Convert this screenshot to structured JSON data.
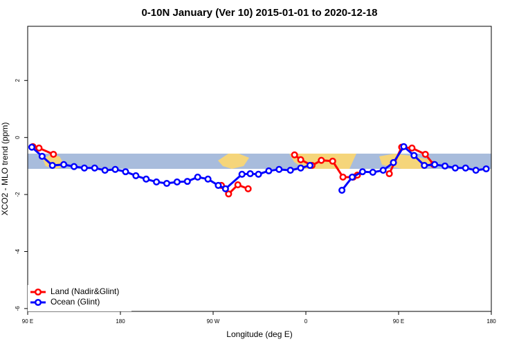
{
  "chart_data": {
    "type": "line",
    "title": "0-10N January (Ver 10)   2015-01-01 to 2020-12-18",
    "x_label": "Longitude (deg E)",
    "y_label": "XCO2 - MLO trend (ppm)",
    "xlim": [
      90,
      540
    ],
    "ylim": [
      -6.1,
      3.9
    ],
    "xticks": [
      {
        "value": 90,
        "label": "90 E"
      },
      180,
      {
        "value": 270,
        "label": "90 W"
      },
      {
        "value": 360,
        "label": "0"
      },
      {
        "value": 450,
        "label": "90 E"
      },
      {
        "value": 540,
        "label": "180"
      }
    ],
    "yticks": [
      -6,
      -4,
      -2,
      0,
      2
    ],
    "legend": "bottom-left",
    "series": [
      {
        "name": "Land (Nadir&Glint)",
        "color": "#ff0000",
        "x": [
          95,
          101,
          115,
          null,
          278,
          285,
          294,
          304,
          null,
          349,
          355,
          366,
          375,
          386,
          396,
          406,
          410,
          null,
          441,
          453,
          463,
          476,
          484
        ],
        "values": [
          -0.32,
          -0.37,
          -0.59,
          null,
          -1.68,
          -1.98,
          -1.66,
          -1.8,
          null,
          -0.61,
          -0.78,
          -0.98,
          -0.8,
          -0.83,
          -1.39,
          -1.39,
          -1.32,
          null,
          -1.27,
          -0.34,
          -0.37,
          -0.59,
          -0.95
        ]
      },
      {
        "name": "Ocean (Glint)",
        "color": "#0000ff",
        "x": [
          94,
          104,
          114,
          125,
          135,
          145,
          155,
          165,
          175,
          185,
          195,
          205,
          215,
          225,
          235,
          245,
          255,
          265,
          275,
          282,
          298,
          306,
          314,
          324,
          334,
          345,
          355,
          364,
          null,
          395,
          405,
          415,
          425,
          435,
          445,
          455,
          465,
          475,
          485,
          495,
          505,
          515,
          525,
          535
        ],
        "values": [
          -0.34,
          -0.66,
          -0.98,
          -0.95,
          -1.02,
          -1.07,
          -1.07,
          -1.15,
          -1.12,
          -1.2,
          -1.34,
          -1.46,
          -1.56,
          -1.61,
          -1.56,
          -1.54,
          -1.39,
          -1.46,
          -1.68,
          -1.8,
          -1.29,
          -1.27,
          -1.29,
          -1.17,
          -1.12,
          -1.15,
          -1.07,
          -0.98,
          null,
          -1.85,
          -1.39,
          -1.2,
          -1.22,
          -1.15,
          -0.88,
          -0.32,
          -0.63,
          -0.98,
          -0.95,
          -1.0,
          -1.07,
          -1.07,
          -1.15,
          -1.1
        ]
      }
    ]
  }
}
